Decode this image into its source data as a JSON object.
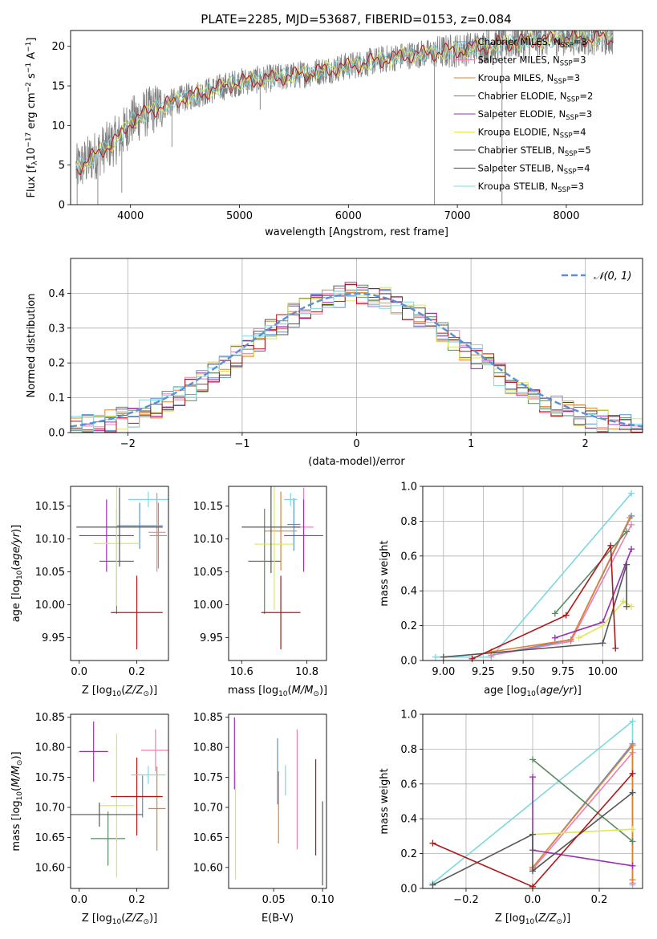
{
  "figure_title": "PLATE=2285, MJD=53687, FIBERID=0153, z=0.084",
  "colors": {
    "Chabrier MILES": "#5b8fd6",
    "Salpeter MILES": "#ee7fb3",
    "Kroupa MILES": "#e2812e",
    "Chabrier ELODIE": "#5a8a63",
    "Salpeter ELODIE": "#9a2fb0",
    "Kroupa ELODIE": "#dfe654",
    "Chabrier STELIB": "#555555",
    "Salpeter STELIB": "#b01818",
    "Kroupa STELIB": "#7dd8e0",
    "data": "#808080"
  },
  "chart_data": [
    {
      "type": "line",
      "panel": "spectrum",
      "xlabel": "wavelength [Angstrom, rest frame]",
      "ylabel": "Flux [f_λ 10^-17 erg cm^-2 s^-1 A^-1]",
      "xlim": [
        3450,
        8700
      ],
      "ylim": [
        0,
        22
      ],
      "xticks": [
        "4000",
        "5000",
        "6000",
        "7000",
        "8000"
      ],
      "yticks": [
        "0",
        "5",
        "10",
        "15",
        "20"
      ],
      "legend_placement": "right",
      "legend": [
        {
          "model": "Chabrier MILES",
          "label": "Chabrier MILES, N",
          "sub": "SSP",
          "suffix": "=3"
        },
        {
          "model": "Salpeter MILES",
          "label": "Salpeter MILES, N",
          "sub": "SSP",
          "suffix": "=3"
        },
        {
          "model": "Kroupa MILES",
          "label": "Kroupa MILES, N",
          "sub": "SSP",
          "suffix": "=3"
        },
        {
          "model": "Chabrier ELODIE",
          "label": "Chabrier ELODIE, N",
          "sub": "SSP",
          "suffix": "=2"
        },
        {
          "model": "Salpeter ELODIE",
          "label": "Salpeter ELODIE, N",
          "sub": "SSP",
          "suffix": "=3"
        },
        {
          "model": "Kroupa ELODIE",
          "label": "Kroupa ELODIE, N",
          "sub": "SSP",
          "suffix": "=4"
        },
        {
          "model": "Chabrier STELIB",
          "label": "Chabrier STELIB, N",
          "sub": "SSP",
          "suffix": "=5"
        },
        {
          "model": "Salpeter STELIB",
          "label": "Salpeter STELIB, N",
          "sub": "SSP",
          "suffix": "=4"
        },
        {
          "model": "Kroupa STELIB",
          "label": "Kroupa STELIB, N",
          "sub": "SSP",
          "suffix": "=3"
        }
      ],
      "continuum": {
        "x": [
          3500,
          3600,
          3700,
          3800,
          3900,
          4000,
          4200,
          4500,
          5000,
          5500,
          6000,
          6500,
          7000,
          7500,
          8000,
          8400
        ],
        "y": [
          4.5,
          5.5,
          6.5,
          7.5,
          8.5,
          10.5,
          12.0,
          13.5,
          15.5,
          16.3,
          17.5,
          18.8,
          19.5,
          20.5,
          21.0,
          21.0
        ]
      }
    },
    {
      "type": "line",
      "panel": "residuals",
      "xlabel": "(data-model)/error",
      "ylabel": "Normed distribution",
      "xlim": [
        -2.5,
        2.5
      ],
      "ylim": [
        0,
        0.5
      ],
      "xticks": [
        "−2",
        "−1",
        "0",
        "1",
        "2"
      ],
      "yticks": [
        "0.0",
        "0.1",
        "0.2",
        "0.3",
        "0.4"
      ],
      "legend": "𝒩(0, 1)",
      "legend_placement": "upper right",
      "grid": true,
      "bins": [
        -2.5,
        -2.4,
        -2.3,
        -2.2,
        -2.1,
        -2.0,
        -1.9,
        -1.8,
        -1.7,
        -1.6,
        -1.5,
        -1.4,
        -1.3,
        -1.2,
        -1.1,
        -1.0,
        -0.9,
        -0.8,
        -0.7,
        -0.6,
        -0.5,
        -0.4,
        -0.3,
        -0.2,
        -0.1,
        0.0,
        0.1,
        0.2,
        0.3,
        0.4,
        0.5,
        0.6,
        0.7,
        0.8,
        0.9,
        1.0,
        1.1,
        1.2,
        1.3,
        1.4,
        1.5,
        1.6,
        1.7,
        1.8,
        1.9,
        2.0,
        2.1,
        2.2,
        2.3,
        2.4,
        2.5
      ]
    },
    {
      "type": "scatter",
      "panel": "age-vs-Z",
      "xlabel": "Z [log10(Z/Z☉)]",
      "ylabel": "age [log10(age/yr)]",
      "xlim": [
        -0.03,
        0.31
      ],
      "ylim": [
        9.915,
        10.18
      ],
      "xticks": [
        "0.0",
        "0.2"
      ],
      "yticks": [
        "9.95",
        "10.00",
        "10.05",
        "10.10",
        "10.15"
      ],
      "points": [
        {
          "model": "Chabrier MILES",
          "x": 0.21,
          "xerr": 0.08,
          "y": 10.12,
          "yerr": 0.035
        },
        {
          "model": "Salpeter MILES",
          "x": 0.27,
          "xerr": 0.03,
          "y": 10.11,
          "yerr": 0.06
        },
        {
          "model": "Kroupa MILES",
          "x": 0.275,
          "xerr": 0.03,
          "y": 10.105,
          "yerr": 0.05
        },
        {
          "model": "Chabrier ELODIE",
          "x": 0.13,
          "xerr": 0.06,
          "y": 10.066,
          "yerr": 0.08
        },
        {
          "model": "Salpeter ELODIE",
          "x": 0.095,
          "xerr": 0.095,
          "y": 10.105,
          "yerr": 0.055
        },
        {
          "model": "Kroupa ELODIE",
          "x": 0.13,
          "xerr": 0.08,
          "y": 10.093,
          "yerr": 0.095
        },
        {
          "model": "Chabrier STELIB",
          "x": 0.14,
          "xerr": 0.15,
          "y": 10.118,
          "yerr": 0.06
        },
        {
          "model": "Salpeter STELIB",
          "x": 0.2,
          "xerr": 0.09,
          "y": 9.988,
          "yerr": 0.056
        },
        {
          "model": "Kroupa STELIB",
          "x": 0.24,
          "xerr": 0.07,
          "y": 10.16,
          "yerr": 0.012
        }
      ]
    },
    {
      "type": "scatter",
      "panel": "age-vs-mass",
      "xlabel": "mass [log10(M/M☉)]",
      "ylabel": "",
      "xlim": [
        10.56,
        10.86
      ],
      "ylim": [
        9.915,
        10.18
      ],
      "xticks": [
        "10.6",
        "10.8"
      ],
      "yticks": [
        "9.95",
        "10.00",
        "10.05",
        "10.10",
        "10.15"
      ],
      "points": [
        {
          "model": "Chabrier MILES",
          "x": 10.76,
          "xerr": 0.02,
          "y": 10.122,
          "yerr": 0.04
        },
        {
          "model": "Salpeter MILES",
          "x": 10.79,
          "xerr": 0.03,
          "y": 10.118,
          "yerr": 0.06
        },
        {
          "model": "Kroupa MILES",
          "x": 10.72,
          "xerr": 0.05,
          "y": 10.112,
          "yerr": 0.06
        },
        {
          "model": "Chabrier ELODIE",
          "x": 10.67,
          "xerr": 0.05,
          "y": 10.066,
          "yerr": 0.08
        },
        {
          "model": "Salpeter ELODIE",
          "x": 10.79,
          "xerr": 0.06,
          "y": 10.105,
          "yerr": 0.055
        },
        {
          "model": "Kroupa ELODIE",
          "x": 10.7,
          "xerr": 0.06,
          "y": 10.092,
          "yerr": 0.1
        },
        {
          "model": "Chabrier STELIB",
          "x": 10.69,
          "xerr": 0.09,
          "y": 10.118,
          "yerr": 0.07
        },
        {
          "model": "Salpeter STELIB",
          "x": 10.72,
          "xerr": 0.06,
          "y": 9.988,
          "yerr": 0.056
        },
        {
          "model": "Kroupa STELIB",
          "x": 10.75,
          "xerr": 0.02,
          "y": 10.16,
          "yerr": 0.01
        }
      ]
    },
    {
      "type": "line",
      "panel": "weight-vs-age",
      "xlabel": "age [log10(age/yr)]",
      "ylabel": "mass weight",
      "xlim": [
        8.87,
        10.25
      ],
      "ylim": [
        0,
        1
      ],
      "xticks": [
        "9.00",
        "9.25",
        "9.50",
        "9.75",
        "10.00"
      ],
      "yticks": [
        "0.0",
        "0.2",
        "0.4",
        "0.6",
        "0.8",
        "1.0"
      ],
      "grid": true,
      "series": [
        {
          "model": "Kroupa STELIB",
          "x": [
            8.95,
            9.3,
            10.18
          ],
          "y": [
            0.02,
            0.02,
            0.96
          ]
        },
        {
          "model": "Chabrier MILES",
          "x": [
            9.3,
            9.8,
            10.18
          ],
          "y": [
            0.03,
            0.12,
            0.83
          ]
        },
        {
          "model": "Salpeter MILES",
          "x": [
            9.3,
            9.8,
            10.18
          ],
          "y": [
            0.03,
            0.11,
            0.78
          ]
        },
        {
          "model": "Kroupa MILES",
          "x": [
            9.3,
            9.8,
            10.17
          ],
          "y": [
            0.05,
            0.12,
            0.82
          ]
        },
        {
          "model": "Chabrier ELODIE",
          "x": [
            9.7,
            10.15
          ],
          "y": [
            0.27,
            0.74
          ]
        },
        {
          "model": "Salpeter ELODIE",
          "x": [
            9.7,
            10.0,
            10.18
          ],
          "y": [
            0.13,
            0.22,
            0.64
          ]
        },
        {
          "model": "Kroupa ELODIE",
          "x": [
            9.85,
            10.0,
            10.13,
            10.18
          ],
          "y": [
            0.13,
            0.2,
            0.34,
            0.31
          ]
        },
        {
          "model": "Chabrier STELIB",
          "x": [
            9.0,
            10.0,
            10.15,
            10.15
          ],
          "y": [
            0.02,
            0.1,
            0.55,
            0.31
          ]
        },
        {
          "model": "Salpeter STELIB",
          "x": [
            9.18,
            9.77,
            10.05,
            10.08
          ],
          "y": [
            0.01,
            0.26,
            0.66,
            0.07
          ]
        }
      ]
    },
    {
      "type": "scatter",
      "panel": "mass-vs-Z",
      "xlabel": "Z [log10(Z/Z☉)]",
      "ylabel": "mass [log10(M/M☉)]",
      "xlim": [
        -0.03,
        0.31
      ],
      "ylim": [
        10.565,
        10.855
      ],
      "xticks": [
        "0.0",
        "0.2"
      ],
      "yticks": [
        "10.60",
        "10.65",
        "10.70",
        "10.75",
        "10.80",
        "10.85"
      ],
      "points": [
        {
          "model": "Chabrier MILES",
          "x": 0.22,
          "xerr": 0.06,
          "y": 10.718,
          "yerr": 0.035
        },
        {
          "model": "Salpeter MILES",
          "x": 0.265,
          "xerr": 0.05,
          "y": 10.795,
          "yerr": 0.035
        },
        {
          "model": "Kroupa MILES",
          "x": 0.27,
          "xerr": 0.03,
          "y": 10.698,
          "yerr": 0.07
        },
        {
          "model": "Chabrier ELODIE",
          "x": 0.1,
          "xerr": 0.06,
          "y": 10.648,
          "yerr": 0.045
        },
        {
          "model": "Salpeter ELODIE",
          "x": 0.05,
          "xerr": 0.05,
          "y": 10.793,
          "yerr": 0.05
        },
        {
          "model": "Kroupa ELODIE",
          "x": 0.13,
          "xerr": 0.06,
          "y": 10.703,
          "yerr": 0.12
        },
        {
          "model": "Chabrier STELIB",
          "x": 0.07,
          "xerr": 0.15,
          "y": 10.688,
          "yerr": 0.02
        },
        {
          "model": "Salpeter STELIB",
          "x": 0.2,
          "xerr": 0.09,
          "y": 10.718,
          "yerr": 0.065
        },
        {
          "model": "Kroupa STELIB",
          "x": 0.24,
          "xerr": 0.06,
          "y": 10.754,
          "yerr": 0.015
        }
      ]
    },
    {
      "type": "scatter",
      "panel": "mass-vs-ebv",
      "xlabel": "E(B-V)",
      "ylabel": "",
      "xlim": [
        0.004,
        0.104
      ],
      "ylim": [
        10.565,
        10.855
      ],
      "xticks": [
        "0.05",
        "0.10"
      ],
      "yticks": [
        "10.60",
        "10.65",
        "10.70",
        "10.75",
        "10.80",
        "10.85"
      ],
      "points": [
        {
          "model": "Chabrier MILES",
          "x": 0.054,
          "y": 10.76,
          "yerr": 0.055
        },
        {
          "model": "Salpeter MILES",
          "x": 0.074,
          "y": 10.73,
          "yerr": 0.1
        },
        {
          "model": "Kroupa MILES",
          "x": 0.055,
          "y": 10.7,
          "yerr": 0.06
        },
        {
          "model": "Salpeter ELODIE",
          "x": 0.01,
          "y": 10.79,
          "yerr": 0.06
        },
        {
          "model": "Kroupa ELODIE",
          "x": 0.011,
          "y": 10.67,
          "yerr": 0.09
        },
        {
          "model": "Chabrier STELIB",
          "x": 0.1,
          "y": 10.64,
          "yerr": 0.07
        },
        {
          "model": "Salpeter STELIB",
          "x": 0.093,
          "y": 10.7,
          "yerr": 0.08
        },
        {
          "model": "Kroupa STELIB",
          "x": 0.062,
          "y": 10.745,
          "yerr": 0.025
        }
      ]
    },
    {
      "type": "line",
      "panel": "weight-vs-Z",
      "xlabel": "Z [log10(Z/Z☉)]",
      "ylabel": "mass weight",
      "xlim": [
        -0.33,
        0.33
      ],
      "ylim": [
        0,
        1
      ],
      "xticks": [
        "−0.2",
        "0.0",
        "0.2"
      ],
      "yticks": [
        "0.0",
        "0.2",
        "0.4",
        "0.6",
        "0.8",
        "1.0"
      ],
      "grid": true,
      "series": [
        {
          "model": "Kroupa STELIB",
          "x": [
            -0.3,
            0.3,
            0.3
          ],
          "y": [
            0.03,
            0.96,
            0.02
          ]
        },
        {
          "model": "Chabrier MILES",
          "x": [
            0.0,
            0.3,
            0.3
          ],
          "y": [
            0.12,
            0.83,
            0.03
          ]
        },
        {
          "model": "Salpeter MILES",
          "x": [
            0.0,
            0.3,
            0.3
          ],
          "y": [
            0.11,
            0.78,
            0.03
          ]
        },
        {
          "model": "Kroupa MILES",
          "x": [
            0.0,
            0.3,
            0.3
          ],
          "y": [
            0.12,
            0.82,
            0.05
          ]
        },
        {
          "model": "Chabrier ELODIE",
          "x": [
            0.0,
            0.3
          ],
          "y": [
            0.74,
            0.27
          ]
        },
        {
          "model": "Salpeter ELODIE",
          "x": [
            0.0,
            0.0,
            0.3
          ],
          "y": [
            0.64,
            0.22,
            0.13
          ]
        },
        {
          "model": "Kroupa ELODIE",
          "x": [
            0.0,
            0.3
          ],
          "y": [
            0.31,
            0.34
          ]
        },
        {
          "model": "Chabrier STELIB",
          "x": [
            -0.3,
            0.0,
            0.0,
            0.3
          ],
          "y": [
            0.02,
            0.31,
            0.1,
            0.55
          ]
        },
        {
          "model": "Salpeter STELIB",
          "x": [
            -0.3,
            0.0,
            0.3
          ],
          "y": [
            0.26,
            0.01,
            0.66
          ]
        }
      ]
    }
  ]
}
